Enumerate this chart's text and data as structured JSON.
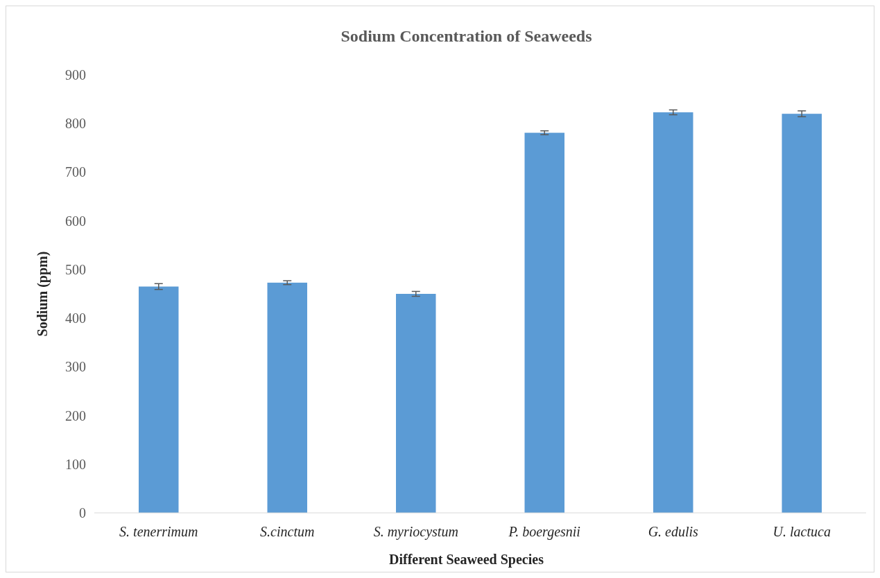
{
  "chart_data": {
    "type": "bar",
    "title": "Sodium Concentration of Seaweeds",
    "xlabel": "Different Seaweed Species",
    "ylabel": "Sodium (ppm)",
    "categories": [
      "S. tenerrimum",
      "S.cinctum",
      "S. myriocystum",
      "P. boergesnii",
      "G. edulis",
      "U. lactuca"
    ],
    "values": [
      465,
      473,
      450,
      781,
      823,
      820
    ],
    "errors": [
      6,
      4,
      5,
      4,
      5,
      6
    ],
    "color": "#5b9bd5",
    "ylim": [
      0,
      900
    ],
    "yticks": [
      0,
      100,
      200,
      300,
      400,
      500,
      600,
      700,
      800,
      900
    ],
    "grid": false
  }
}
